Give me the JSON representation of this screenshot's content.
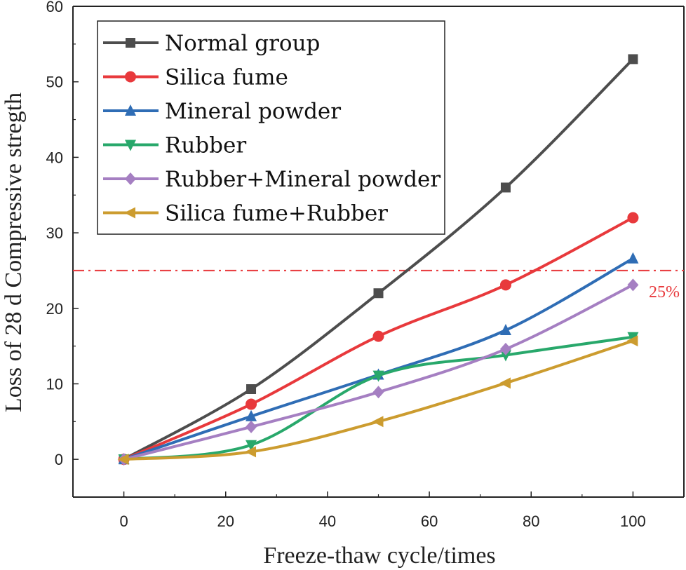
{
  "chart_data": {
    "type": "line",
    "title": "",
    "xlabel": "Freeze-thaw cycle/times",
    "ylabel": "Loss of 28 d Compressive stregth",
    "xlim": [
      -10,
      110
    ],
    "ylim": [
      -5,
      60
    ],
    "xticks": [
      0,
      20,
      40,
      60,
      80,
      100
    ],
    "yticks": [
      0,
      10,
      20,
      30,
      40,
      50,
      60
    ],
    "x": [
      0,
      25,
      50,
      75,
      100
    ],
    "series": [
      {
        "name": "Normal group",
        "color": "#4d4d4d",
        "marker": "square",
        "values": [
          0,
          9.3,
          22.0,
          36.0,
          53.0
        ]
      },
      {
        "name": "Silica fume",
        "color": "#e8393c",
        "marker": "circle",
        "values": [
          0,
          7.3,
          16.3,
          23.1,
          32.0
        ]
      },
      {
        "name": "Mineral powder",
        "color": "#2f6db5",
        "marker": "triangle-up",
        "values": [
          0,
          5.7,
          11.2,
          17.1,
          26.6
        ]
      },
      {
        "name": "Rubber",
        "color": "#28a86b",
        "marker": "triangle-down",
        "values": [
          0,
          1.9,
          11.1,
          13.8,
          16.2
        ]
      },
      {
        "name": "Rubber+Mineral powder",
        "color": "#a57fc2",
        "marker": "diamond",
        "values": [
          0,
          4.3,
          8.9,
          14.6,
          23.1
        ]
      },
      {
        "name": "Silica fume+Rubber",
        "color": "#cc9c2f",
        "marker": "triangle-left",
        "values": [
          0,
          1.0,
          5.0,
          10.1,
          15.7
        ]
      }
    ],
    "reference_line": {
      "y": 25,
      "label": "25%",
      "color": "#e8393c"
    },
    "legend_position": "top-left",
    "grid": false
  }
}
